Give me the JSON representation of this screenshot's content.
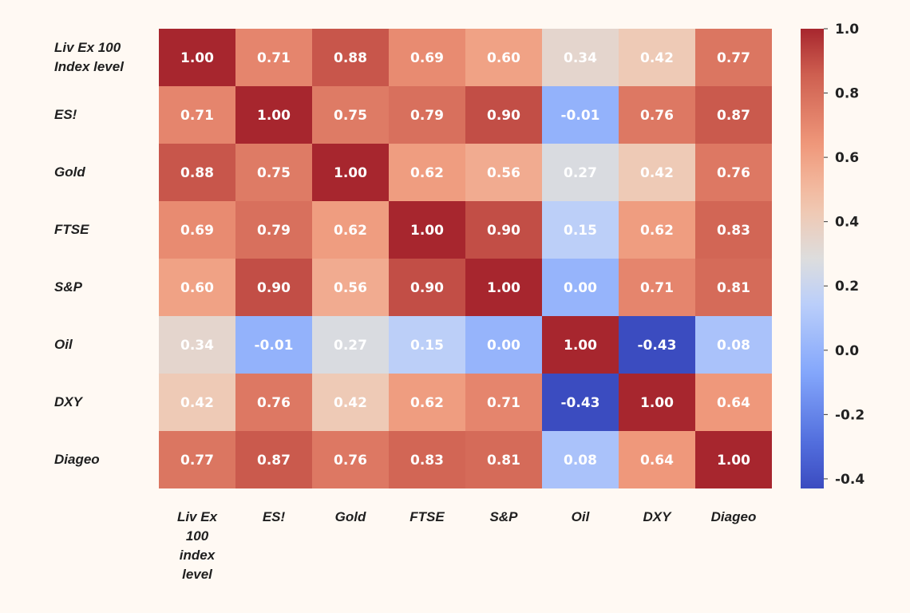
{
  "chart_data": {
    "type": "heatmap",
    "title": "",
    "row_labels": [
      [
        "Liv Ex 100",
        "Index level"
      ],
      [
        "ES!"
      ],
      [
        "Gold"
      ],
      [
        "FTSE"
      ],
      [
        "S&P"
      ],
      [
        "Oil"
      ],
      [
        "DXY"
      ],
      [
        "Diageo"
      ]
    ],
    "col_labels": [
      [
        "Liv Ex",
        "100",
        "index",
        "level"
      ],
      [
        "ES!"
      ],
      [
        "Gold"
      ],
      [
        "FTSE"
      ],
      [
        "S&P"
      ],
      [
        "Oil"
      ],
      [
        "DXY"
      ],
      [
        "Diageo"
      ]
    ],
    "values": [
      [
        1.0,
        0.71,
        0.88,
        0.69,
        0.6,
        0.34,
        0.42,
        0.77
      ],
      [
        0.71,
        1.0,
        0.75,
        0.79,
        0.9,
        -0.01,
        0.76,
        0.87
      ],
      [
        0.88,
        0.75,
        1.0,
        0.62,
        0.56,
        0.27,
        0.42,
        0.76
      ],
      [
        0.69,
        0.79,
        0.62,
        1.0,
        0.9,
        0.15,
        0.62,
        0.83
      ],
      [
        0.6,
        0.9,
        0.56,
        0.9,
        1.0,
        0.0,
        0.71,
        0.81
      ],
      [
        0.34,
        -0.01,
        0.27,
        0.15,
        0.0,
        1.0,
        -0.43,
        0.08
      ],
      [
        0.42,
        0.76,
        0.42,
        0.62,
        0.71,
        -0.43,
        1.0,
        0.64
      ],
      [
        0.77,
        0.87,
        0.76,
        0.83,
        0.81,
        0.08,
        0.64,
        1.0
      ]
    ],
    "value_format_decimals": 2,
    "colormap": "coolwarm",
    "vmin": -0.43,
    "vmax": 1.0,
    "colorbar": {
      "ticks": [
        1.0,
        0.8,
        0.6,
        0.4,
        0.2,
        0.0,
        -0.2,
        -0.4
      ],
      "tick_labels": [
        "1.0",
        "0.8",
        "0.6",
        "0.4",
        "0.2",
        "0.0",
        "-0.2",
        "-0.4"
      ],
      "placement": "right"
    },
    "cell_text_color": "#ffffff",
    "background_color": "#fff9f3"
  }
}
